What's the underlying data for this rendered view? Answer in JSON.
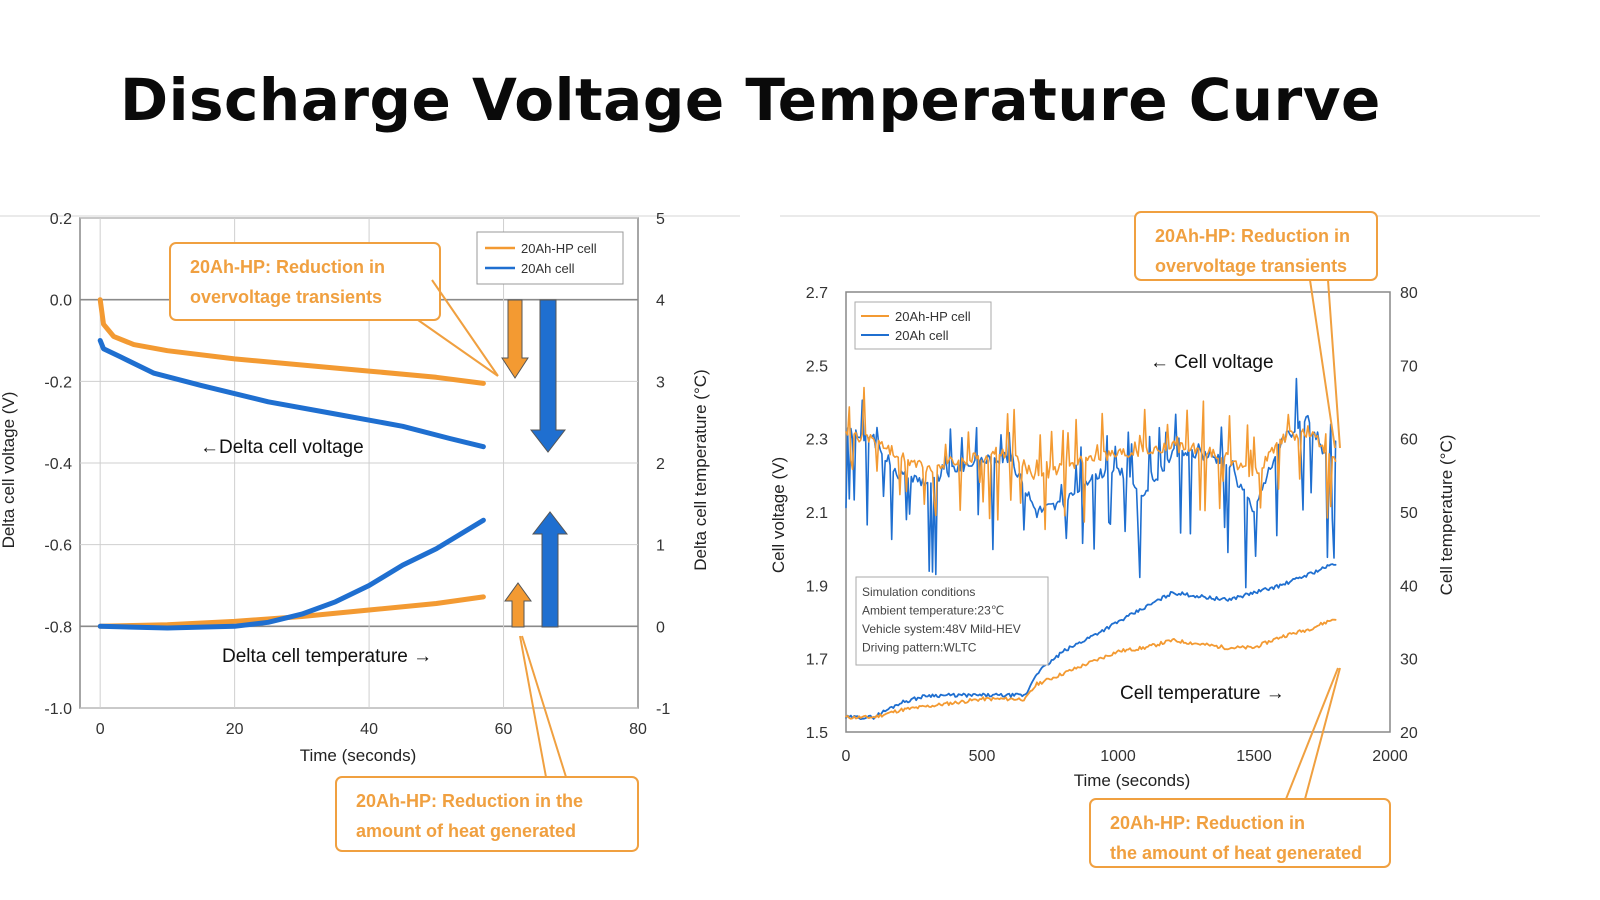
{
  "title": "Discharge Voltage  Temperature Curve",
  "colors": {
    "hp": "#f39a32",
    "std": "#1f6fd0",
    "callout": "#f0a040",
    "grid": "#cfcfcf"
  },
  "chart_data": [
    {
      "type": "line",
      "xlabel": "Time (seconds)",
      "ylabel": "Delta cell voltage (V)",
      "y2label": "Delta cell temperature (°C)",
      "xlim": [
        -3,
        80
      ],
      "ylim": [
        -1.0,
        0.2
      ],
      "y2lim": [
        -1,
        5
      ],
      "xticks": [
        "0",
        "20",
        "40",
        "60",
        "80"
      ],
      "yticks": [
        "0.2",
        "0.0",
        "-0.2",
        "-0.4",
        "-0.6",
        "-0.8",
        "-1.0"
      ],
      "y2ticks": [
        "5",
        "4",
        "3",
        "2",
        "1",
        "0",
        "-1"
      ],
      "grid": true,
      "legend": {
        "position": "top-right",
        "entries": [
          "20Ah-HP cell",
          "20Ah cell"
        ]
      },
      "series": [
        {
          "name": "20Ah-HP cell",
          "quantity": "voltage",
          "axis": "left",
          "x": [
            0,
            0.5,
            2,
            5,
            10,
            20,
            30,
            40,
            50,
            57
          ],
          "y": [
            0,
            -0.06,
            -0.09,
            -0.11,
            -0.125,
            -0.145,
            -0.16,
            -0.175,
            -0.19,
            -0.205
          ]
        },
        {
          "name": "20Ah cell",
          "quantity": "voltage",
          "axis": "left",
          "x": [
            0,
            0.5,
            3,
            8,
            15,
            25,
            35,
            45,
            52,
            57
          ],
          "y": [
            -0.1,
            -0.12,
            -0.14,
            -0.18,
            -0.21,
            -0.25,
            -0.28,
            -0.31,
            -0.34,
            -0.36
          ]
        },
        {
          "name": "20Ah-HP cell",
          "quantity": "temperature",
          "axis": "right",
          "x": [
            0,
            10,
            20,
            30,
            40,
            50,
            57
          ],
          "y": [
            0,
            0.02,
            0.06,
            0.12,
            0.2,
            0.28,
            0.36
          ]
        },
        {
          "name": "20Ah cell",
          "quantity": "temperature",
          "axis": "right",
          "x": [
            0,
            10,
            20,
            25,
            30,
            35,
            40,
            45,
            50,
            57
          ],
          "y": [
            0,
            -0.02,
            0,
            0.05,
            0.15,
            0.3,
            0.5,
            0.75,
            0.95,
            1.3
          ]
        }
      ],
      "labels": {
        "voltage": "←Delta cell voltage",
        "temperature": "Delta cell temperature →"
      },
      "annotations": [
        {
          "lines": [
            "20Ah-HP: Reduction in",
            "overvoltage transients"
          ]
        },
        {
          "lines": [
            "20Ah-HP: Reduction in the",
            "amount of heat generated"
          ]
        }
      ]
    },
    {
      "type": "line",
      "xlabel": "Time (seconds)",
      "ylabel": "Cell voltage (V)",
      "y2label": "Cell temperature (°C)",
      "xlim": [
        0,
        2000
      ],
      "ylim": [
        1.5,
        2.7
      ],
      "y2lim": [
        20,
        80
      ],
      "xticks": [
        "0",
        "500",
        "1000",
        "1500",
        "2000"
      ],
      "yticks": [
        "2.7",
        "2.5",
        "2.3",
        "2.1",
        "1.9",
        "1.7",
        "1.5"
      ],
      "y2ticks": [
        "80",
        "70",
        "60",
        "50",
        "40",
        "30",
        "20"
      ],
      "grid": false,
      "legend": {
        "position": "top-left",
        "entries": [
          "20Ah-HP cell",
          "20Ah cell"
        ]
      },
      "series": [
        {
          "name": "20Ah-HP cell",
          "quantity": "voltage",
          "axis": "left",
          "x": [
            0,
            100,
            200,
            300,
            400,
            500,
            600,
            700,
            800,
            900,
            1000,
            1100,
            1200,
            1300,
            1400,
            1500,
            1600,
            1700,
            1800
          ],
          "y": [
            2.31,
            2.3,
            2.25,
            2.22,
            2.24,
            2.25,
            2.26,
            2.2,
            2.22,
            2.25,
            2.26,
            2.27,
            2.28,
            2.27,
            2.25,
            2.2,
            2.3,
            2.32,
            2.24
          ]
        },
        {
          "name": "20Ah cell",
          "quantity": "voltage",
          "axis": "left",
          "x": [
            0,
            100,
            200,
            300,
            400,
            500,
            600,
            700,
            800,
            900,
            1000,
            1100,
            1200,
            1300,
            1400,
            1500,
            1600,
            1700,
            1800
          ],
          "y": [
            2.32,
            2.3,
            2.2,
            2.18,
            2.22,
            2.24,
            2.25,
            2.1,
            2.12,
            2.2,
            2.22,
            2.15,
            2.26,
            2.26,
            2.24,
            2.1,
            2.3,
            2.35,
            2.2
          ]
        },
        {
          "name": "20Ah-HP cell",
          "quantity": "temperature",
          "axis": "right",
          "x": [
            0,
            100,
            200,
            300,
            400,
            500,
            600,
            660,
            700,
            800,
            900,
            1000,
            1100,
            1200,
            1300,
            1400,
            1500,
            1600,
            1700,
            1800
          ],
          "y": [
            22,
            22,
            23,
            23.5,
            24,
            24.5,
            24.5,
            24.5,
            26.5,
            28,
            29.5,
            31,
            31.5,
            32.5,
            32,
            31.5,
            31.5,
            33,
            34,
            35.5
          ]
        },
        {
          "name": "20Ah cell",
          "quantity": "temperature",
          "axis": "right",
          "x": [
            0,
            100,
            200,
            300,
            400,
            500,
            600,
            660,
            700,
            800,
            900,
            1000,
            1100,
            1200,
            1300,
            1400,
            1500,
            1600,
            1700,
            1800
          ],
          "y": [
            22,
            22,
            24,
            25,
            25,
            25,
            25,
            25,
            28,
            31,
            33,
            35,
            37,
            39,
            38.5,
            38,
            39,
            40,
            41.5,
            43
          ]
        }
      ],
      "labels": {
        "voltage": "← Cell voltage",
        "temperature": "Cell temperature →"
      },
      "conditions": [
        "Simulation conditions",
        "Ambient temperature:23℃",
        "Vehicle system:48V Mild-HEV",
        "Driving pattern:WLTC"
      ],
      "annotations": [
        {
          "lines": [
            "20Ah-HP: Reduction in",
            "overvoltage transients"
          ]
        },
        {
          "lines": [
            "20Ah-HP: Reduction in",
            "the amount of heat generated"
          ]
        }
      ]
    }
  ]
}
